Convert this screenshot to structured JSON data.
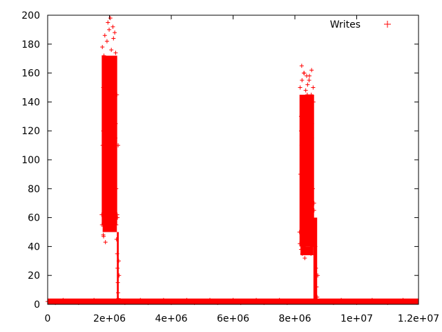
{
  "chart_data": {
    "type": "scatter",
    "title": "",
    "xlabel": "",
    "ylabel": "",
    "xlim": [
      0,
      12000000
    ],
    "ylim": [
      0,
      200
    ],
    "grid": false,
    "legend_position": "top-right",
    "marker": "+",
    "x_ticks": [
      {
        "value": 0,
        "label": "0"
      },
      {
        "value": 2000000,
        "label": "2e+06"
      },
      {
        "value": 4000000,
        "label": "4e+06"
      },
      {
        "value": 6000000,
        "label": "6e+06"
      },
      {
        "value": 8000000,
        "label": "8e+06"
      },
      {
        "value": 10000000,
        "label": "1e+07"
      },
      {
        "value": 12000000,
        "label": "1.2e+07"
      }
    ],
    "y_ticks": [
      {
        "value": 0,
        "label": "0"
      },
      {
        "value": 20,
        "label": "20"
      },
      {
        "value": 40,
        "label": "40"
      },
      {
        "value": 60,
        "label": "60"
      },
      {
        "value": 80,
        "label": "80"
      },
      {
        "value": 100,
        "label": "100"
      },
      {
        "value": 120,
        "label": "120"
      },
      {
        "value": 140,
        "label": "140"
      },
      {
        "value": 160,
        "label": "160"
      },
      {
        "value": 180,
        "label": "180"
      },
      {
        "value": 200,
        "label": "200"
      }
    ],
    "series": [
      {
        "name": "Writes",
        "color": "#ff0000",
        "x": [
          0,
          250000,
          500000,
          750000,
          1000000,
          1250000,
          1500000,
          1750000,
          1750000,
          1780000,
          1800000,
          1820000,
          1850000,
          1880000,
          1900000,
          1920000,
          1950000,
          1980000,
          2000000,
          2020000,
          2050000,
          2080000,
          2100000,
          2120000,
          2150000,
          2180000,
          2200000,
          2220000,
          2240000,
          2260000,
          2280000,
          1760000,
          1800000,
          1830000,
          1860000,
          1900000,
          1940000,
          1980000,
          2020000,
          2060000,
          2100000,
          2140000,
          2180000,
          2220000,
          2250000,
          1770000,
          1850000,
          1920000,
          1990000,
          2060000,
          2130000,
          2200000,
          1800000,
          1880000,
          1960000,
          2040000,
          2120000,
          2190000,
          1810000,
          1870000,
          1950000,
          2030000,
          2110000,
          2170000,
          2230000,
          2250000,
          2260000,
          2270000,
          2280000,
          2290000,
          2300000,
          2310000,
          2500000,
          2750000,
          3000000,
          3250000,
          3500000,
          3750000,
          4000000,
          4250000,
          4500000,
          4750000,
          5000000,
          5250000,
          5500000,
          5750000,
          6000000,
          6250000,
          6500000,
          6750000,
          7000000,
          7250000,
          7500000,
          7750000,
          8000000,
          8150000,
          8180000,
          8200000,
          8220000,
          8250000,
          8280000,
          8300000,
          8320000,
          8350000,
          8380000,
          8400000,
          8420000,
          8450000,
          8480000,
          8500000,
          8520000,
          8550000,
          8580000,
          8600000,
          8620000,
          8160000,
          8200000,
          8240000,
          8280000,
          8320000,
          8360000,
          8400000,
          8440000,
          8480000,
          8520000,
          8560000,
          8600000,
          8170000,
          8230000,
          8290000,
          8350000,
          8410000,
          8470000,
          8530000,
          8590000,
          8200000,
          8250000,
          8300000,
          8350000,
          8400000,
          8450000,
          8500000,
          8550000,
          8220000,
          8300000,
          8380000,
          8460000,
          8540000,
          8620000,
          8640000,
          8660000,
          8680000,
          8700000,
          8720000,
          8740000,
          8900000,
          9250000,
          9500000,
          9750000,
          10000000,
          10250000,
          10500000,
          10750000,
          11000000,
          11250000,
          11500000,
          11750000,
          11900000
        ],
        "y": [
          2,
          1,
          3,
          2,
          1,
          2,
          3,
          2,
          62,
          110,
          150,
          172,
          88,
          130,
          165,
          95,
          140,
          120,
          168,
          75,
          155,
          100,
          160,
          135,
          90,
          170,
          125,
          80,
          145,
          60,
          110,
          55,
          48,
          70,
          58,
          52,
          65,
          60,
          54,
          62,
          57,
          68,
          59,
          55,
          62,
          178,
          186,
          182,
          190,
          176,
          184,
          174,
          120,
          98,
          150,
          108,
          132,
          115,
          47,
          43,
          195,
          198,
          192,
          188,
          45,
          35,
          25,
          15,
          8,
          4,
          30,
          20,
          1,
          2,
          3,
          1,
          2,
          3,
          1,
          2,
          3,
          1,
          2,
          3,
          1,
          2,
          3,
          1,
          2,
          3,
          1,
          2,
          3,
          1,
          2,
          50,
          90,
          130,
          110,
          70,
          140,
          100,
          60,
          125,
          85,
          145,
          105,
          75,
          135,
          95,
          55,
          115,
          80,
          140,
          65,
          42,
          38,
          35,
          40,
          32,
          36,
          44,
          38,
          42,
          35,
          40,
          45,
          150,
          155,
          160,
          148,
          152,
          158,
          145,
          150,
          120,
          100,
          130,
          88,
          115,
          95,
          110,
          125,
          165,
          160,
          158,
          155,
          162,
          70,
          55,
          40,
          25,
          12,
          5,
          20,
          2,
          1,
          3,
          2,
          1,
          2,
          3,
          2,
          1,
          2,
          3,
          2,
          2
        ]
      }
    ]
  }
}
